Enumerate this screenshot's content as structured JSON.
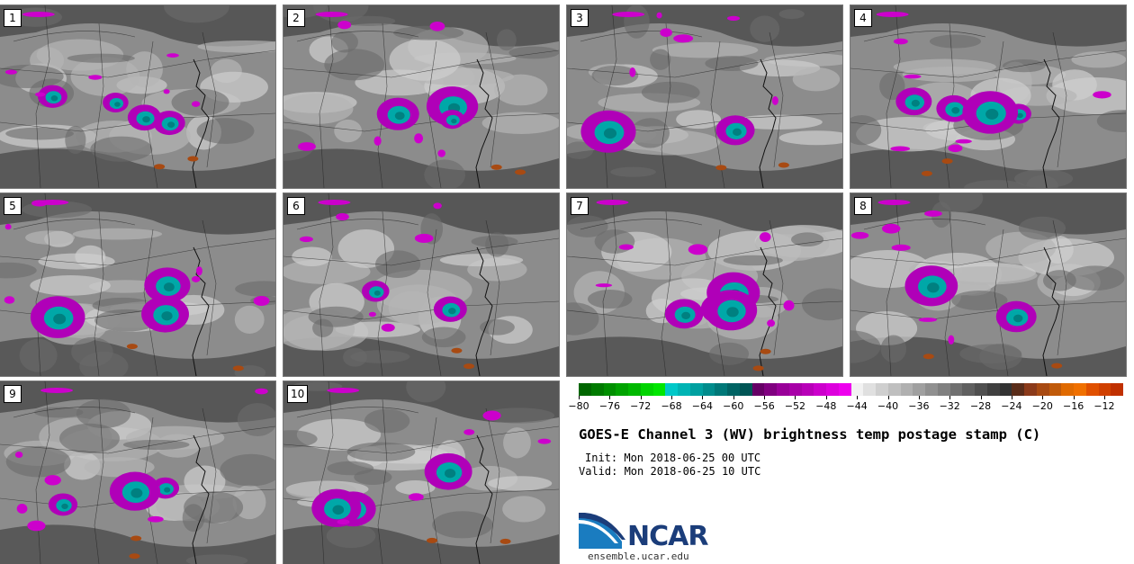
{
  "panels": [
    {
      "label": "1"
    },
    {
      "label": "2"
    },
    {
      "label": "3"
    },
    {
      "label": "4"
    },
    {
      "label": "5"
    },
    {
      "label": "6"
    },
    {
      "label": "7"
    },
    {
      "label": "8"
    },
    {
      "label": "9"
    },
    {
      "label": "10"
    }
  ],
  "colorbar": {
    "ticks": [
      "−80",
      "−76",
      "−72",
      "−68",
      "−64",
      "−60",
      "−56",
      "−52",
      "−48",
      "−44",
      "−40",
      "−36",
      "−32",
      "−28",
      "−24",
      "−20",
      "−16",
      "−12"
    ],
    "colors": [
      "#006600",
      "#007a00",
      "#008f00",
      "#00a300",
      "#00b800",
      "#00d400",
      "#00e600",
      "#00c8c8",
      "#00b4b4",
      "#00a0a0",
      "#008c8c",
      "#007878",
      "#006464",
      "#005555",
      "#660066",
      "#800080",
      "#990099",
      "#a800a8",
      "#b800b8",
      "#cc00cc",
      "#dd00dd",
      "#ee00ee",
      "#f2f2f2",
      "#e0e0e0",
      "#cfcfcf",
      "#bfbfbf",
      "#b0b0b0",
      "#a0a0a0",
      "#909090",
      "#808080",
      "#707070",
      "#606060",
      "#505050",
      "#404040",
      "#333333",
      "#5a2d1a",
      "#8b3a1a",
      "#a84a12",
      "#c05a0a",
      "#e06a00",
      "#f07000",
      "#e05000",
      "#d04000",
      "#c03000"
    ]
  },
  "title": "GOES-E Channel 3 (WV) brightness temp postage stamp (C)",
  "init": "Init: Mon 2018-06-25 00 UTC",
  "valid": "Valid: Mon 2018-06-25 10 UTC",
  "logo_text": "NCAR",
  "website": "ensemble.ucar.edu"
}
